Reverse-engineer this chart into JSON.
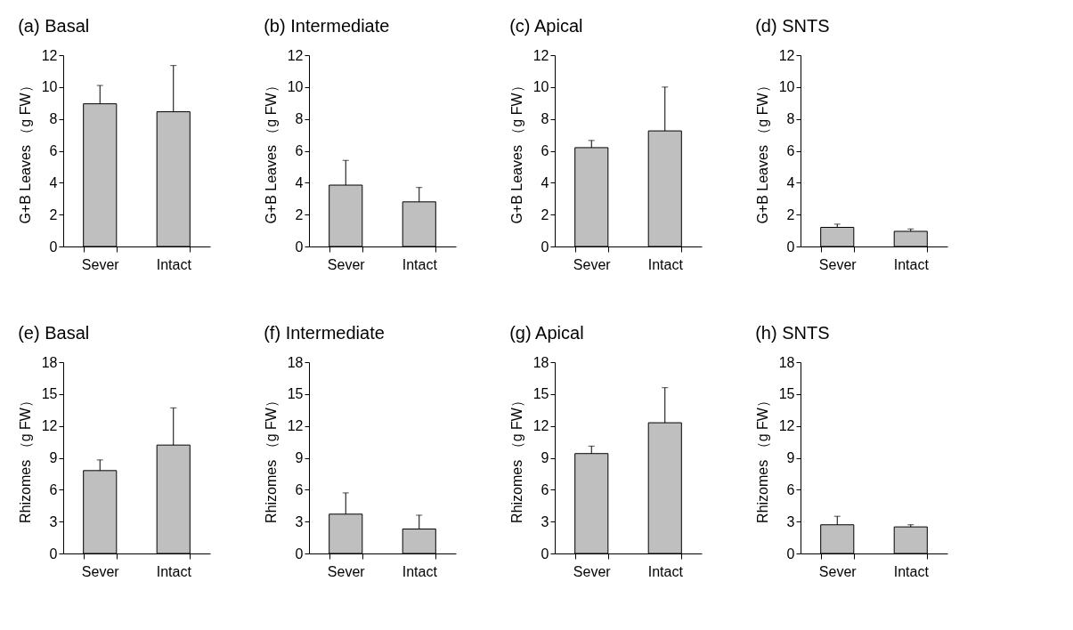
{
  "chart_data": [
    {
      "type": "bar",
      "title": "(a)  Basal",
      "ylabel": "G+B Leaves （g FW）",
      "categories": [
        "Sever",
        "Intact"
      ],
      "values": [
        8.95,
        8.45
      ],
      "errors": [
        [
          8.95,
          10.1
        ],
        [
          8.45,
          11.35
        ]
      ],
      "color": "#bfbfbf",
      "ylim": [
        0,
        12
      ],
      "yticks": [
        0,
        2,
        4,
        6,
        8,
        10,
        12
      ]
    },
    {
      "type": "bar",
      "title": "(b)  Intermediate",
      "ylabel": "G+B Leaves （g FW）",
      "categories": [
        "Sever",
        "Intact"
      ],
      "values": [
        3.85,
        2.8
      ],
      "errors": [
        [
          3.85,
          5.4
        ],
        [
          2.8,
          3.7
        ]
      ],
      "color": "#bfbfbf",
      "ylim": [
        0,
        12
      ],
      "yticks": [
        0,
        2,
        4,
        6,
        8,
        10,
        12
      ]
    },
    {
      "type": "bar",
      "title": "(c)  Apical",
      "ylabel": "G+B Leaves （g FW）",
      "categories": [
        "Sever",
        "Intact"
      ],
      "values": [
        6.2,
        7.25
      ],
      "errors": [
        [
          6.2,
          6.65
        ],
        [
          7.25,
          10.0
        ]
      ],
      "color": "#bfbfbf",
      "ylim": [
        0,
        12
      ],
      "yticks": [
        0,
        2,
        4,
        6,
        8,
        10,
        12
      ]
    },
    {
      "type": "bar",
      "title": "(d)  SNTS",
      "ylabel": "G+B Leaves （g FW）",
      "categories": [
        "Sever",
        "Intact"
      ],
      "values": [
        1.2,
        0.95
      ],
      "errors": [
        [
          1.2,
          1.4
        ],
        [
          0.95,
          1.1
        ]
      ],
      "color": "#bfbfbf",
      "ylim": [
        0,
        12
      ],
      "yticks": [
        0,
        2,
        4,
        6,
        8,
        10,
        12
      ]
    },
    {
      "type": "bar",
      "title": "(e)  Basal",
      "ylabel": "Rhizomes （g FW）",
      "categories": [
        "Sever",
        "Intact"
      ],
      "values": [
        7.8,
        10.2
      ],
      "errors": [
        [
          7.8,
          8.8
        ],
        [
          10.2,
          13.7
        ]
      ],
      "color": "#bfbfbf",
      "ylim": [
        0,
        18
      ],
      "yticks": [
        0,
        3,
        6,
        9,
        12,
        15,
        18
      ]
    },
    {
      "type": "bar",
      "title": "(f)  Intermediate",
      "ylabel": "Rhizomes （g FW）",
      "categories": [
        "Sever",
        "Intact"
      ],
      "values": [
        3.7,
        2.3
      ],
      "errors": [
        [
          3.7,
          5.7
        ],
        [
          2.3,
          3.6
        ]
      ],
      "color": "#bfbfbf",
      "ylim": [
        0,
        18
      ],
      "yticks": [
        0,
        3,
        6,
        9,
        12,
        15,
        18
      ]
    },
    {
      "type": "bar",
      "title": "(g)  Apical",
      "ylabel": "Rhizomes （g FW）",
      "categories": [
        "Sever",
        "Intact"
      ],
      "values": [
        9.4,
        12.3
      ],
      "errors": [
        [
          9.4,
          10.1
        ],
        [
          12.3,
          15.6
        ]
      ],
      "color": "#bfbfbf",
      "ylim": [
        0,
        18
      ],
      "yticks": [
        0,
        3,
        6,
        9,
        12,
        15,
        18
      ]
    },
    {
      "type": "bar",
      "title": "(h)  SNTS",
      "ylabel": "Rhizomes （g FW）",
      "categories": [
        "Sever",
        "Intact"
      ],
      "values": [
        2.7,
        2.5
      ],
      "errors": [
        [
          2.7,
          3.5
        ],
        [
          2.5,
          2.7
        ]
      ],
      "color": "#bfbfbf",
      "ylim": [
        0,
        18
      ],
      "yticks": [
        0,
        3,
        6,
        9,
        12,
        15,
        18
      ]
    }
  ]
}
